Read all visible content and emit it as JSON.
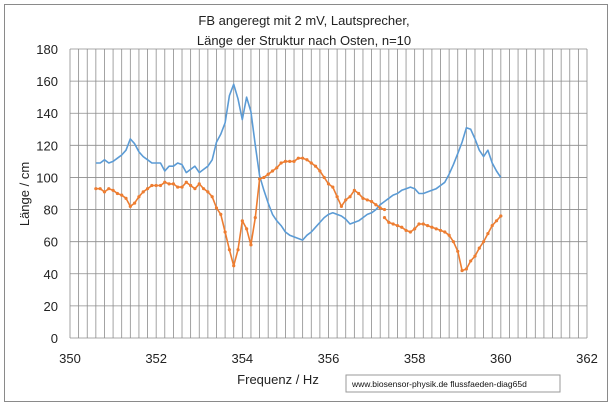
{
  "chart_data": {
    "type": "line",
    "title_line1": "FB angeregt mit 2 mV, Lautsprecher,",
    "title_line2": "Länge der Struktur nach Osten, n=10",
    "xlabel": "Frequenz / Hz",
    "ylabel": "Länge / cm",
    "xlim": [
      350,
      362
    ],
    "ylim": [
      0,
      180
    ],
    "x_ticks": [
      350,
      352,
      354,
      356,
      358,
      360,
      362
    ],
    "y_ticks": [
      0,
      20,
      40,
      60,
      80,
      100,
      120,
      140,
      160,
      180
    ],
    "x_grid_step": 0.2,
    "y_grid_step": 20,
    "grid": true,
    "watermark": "www.biosensor-physik.de  flussfaeden-diag65d",
    "series": [
      {
        "color": "#5B9BD5",
        "marker": false,
        "points": [
          [
            350.6,
            109
          ],
          [
            350.7,
            109
          ],
          [
            350.8,
            111
          ],
          [
            350.9,
            109
          ],
          [
            351.0,
            110
          ],
          [
            351.1,
            112
          ],
          [
            351.2,
            114
          ],
          [
            351.3,
            117
          ],
          [
            351.4,
            124
          ],
          [
            351.5,
            121
          ],
          [
            351.6,
            116
          ],
          [
            351.7,
            113
          ],
          [
            351.8,
            111
          ],
          [
            351.9,
            109
          ],
          [
            352.0,
            109
          ],
          [
            352.1,
            109
          ],
          [
            352.2,
            104
          ],
          [
            352.3,
            107
          ],
          [
            352.4,
            107
          ],
          [
            352.5,
            109
          ],
          [
            352.6,
            108
          ],
          [
            352.7,
            103
          ],
          [
            352.8,
            105
          ],
          [
            352.9,
            107
          ],
          [
            353.0,
            103
          ],
          [
            353.1,
            105
          ],
          [
            353.2,
            107
          ],
          [
            353.3,
            111
          ],
          [
            353.4,
            122
          ],
          [
            353.5,
            127
          ],
          [
            353.6,
            134
          ],
          [
            353.7,
            151
          ],
          [
            353.8,
            158
          ],
          [
            353.9,
            149
          ],
          [
            354.0,
            136
          ],
          [
            354.1,
            150
          ],
          [
            354.2,
            141
          ],
          [
            354.3,
            120
          ],
          [
            354.4,
            101
          ],
          [
            354.5,
            92
          ],
          [
            354.6,
            84
          ],
          [
            354.7,
            77
          ],
          [
            354.8,
            73
          ],
          [
            354.9,
            70
          ],
          [
            355.0,
            66
          ],
          [
            355.1,
            64
          ],
          [
            355.2,
            63
          ],
          [
            355.3,
            62
          ],
          [
            355.4,
            61
          ],
          [
            355.5,
            64
          ],
          [
            355.6,
            66
          ],
          [
            355.7,
            69
          ],
          [
            355.8,
            72
          ],
          [
            355.9,
            75
          ],
          [
            356.0,
            77
          ],
          [
            356.1,
            78
          ],
          [
            356.2,
            77
          ],
          [
            356.3,
            76
          ],
          [
            356.4,
            74
          ],
          [
            356.5,
            71
          ],
          [
            356.6,
            72
          ],
          [
            356.7,
            73
          ],
          [
            356.8,
            75
          ],
          [
            356.9,
            77
          ],
          [
            357.0,
            78
          ],
          [
            357.1,
            80
          ],
          [
            357.2,
            83
          ],
          [
            357.3,
            85
          ],
          [
            357.4,
            87
          ],
          [
            357.5,
            89
          ],
          [
            357.6,
            90
          ],
          [
            357.7,
            92
          ],
          [
            357.8,
            93
          ],
          [
            357.9,
            94
          ],
          [
            358.0,
            93
          ],
          [
            358.1,
            90
          ],
          [
            358.2,
            90
          ],
          [
            358.3,
            91
          ],
          [
            358.4,
            92
          ],
          [
            358.5,
            93
          ],
          [
            358.6,
            95
          ],
          [
            358.7,
            97
          ],
          [
            358.8,
            102
          ],
          [
            358.9,
            108
          ],
          [
            359.0,
            115
          ],
          [
            359.1,
            122
          ],
          [
            359.2,
            131
          ],
          [
            359.3,
            130
          ],
          [
            359.4,
            124
          ],
          [
            359.5,
            117
          ],
          [
            359.6,
            113
          ],
          [
            359.7,
            117
          ],
          [
            359.8,
            109
          ],
          [
            359.9,
            104
          ],
          [
            360.0,
            100
          ]
        ]
      },
      {
        "color": "#ED7D31",
        "marker": true,
        "points": [
          [
            350.6,
            93
          ],
          [
            350.7,
            93
          ],
          [
            350.8,
            91
          ],
          [
            350.9,
            93
          ],
          [
            351.0,
            92
          ],
          [
            351.1,
            90
          ],
          [
            351.2,
            89
          ],
          [
            351.3,
            87
          ],
          [
            351.4,
            82
          ],
          [
            351.5,
            84
          ],
          [
            351.6,
            88
          ],
          [
            351.7,
            91
          ],
          [
            351.8,
            93
          ],
          [
            351.9,
            95
          ],
          [
            352.0,
            95
          ],
          [
            352.1,
            95
          ],
          [
            352.2,
            97
          ],
          [
            352.3,
            96
          ],
          [
            352.4,
            96
          ],
          [
            352.5,
            94
          ],
          [
            352.6,
            94
          ],
          [
            352.7,
            97
          ],
          [
            352.8,
            95
          ],
          [
            352.9,
            93
          ],
          [
            353.0,
            96
          ],
          [
            353.1,
            93
          ],
          [
            353.2,
            91
          ],
          [
            353.3,
            88
          ],
          [
            353.4,
            81
          ],
          [
            353.5,
            77
          ],
          [
            353.6,
            66
          ],
          [
            353.7,
            55
          ],
          [
            353.8,
            45
          ],
          [
            353.9,
            55
          ],
          [
            354.0,
            73
          ],
          [
            354.1,
            68
          ],
          [
            354.2,
            58
          ],
          [
            354.3,
            75
          ],
          [
            354.4,
            99
          ],
          [
            354.5,
            100
          ],
          [
            354.6,
            102
          ],
          [
            354.7,
            104
          ],
          [
            354.8,
            106
          ],
          [
            354.9,
            109
          ],
          [
            355.0,
            110
          ],
          [
            355.1,
            110
          ],
          [
            355.2,
            110
          ],
          [
            355.3,
            112
          ],
          [
            355.4,
            112
          ],
          [
            355.5,
            111
          ],
          [
            355.6,
            109
          ],
          [
            355.7,
            107
          ],
          [
            355.8,
            104
          ],
          [
            355.9,
            100
          ],
          [
            356.0,
            96
          ],
          [
            356.1,
            94
          ],
          [
            356.2,
            88
          ],
          [
            356.3,
            82
          ],
          [
            356.4,
            86
          ],
          [
            356.5,
            88
          ],
          [
            356.6,
            92
          ],
          [
            356.7,
            90
          ],
          [
            356.8,
            87
          ],
          [
            356.9,
            86
          ],
          [
            357.0,
            85
          ],
          [
            357.1,
            83
          ],
          [
            357.2,
            81
          ],
          [
            357.3,
            80
          ]
        ]
      },
      {
        "color": "#ED7D31",
        "marker": true,
        "points": [
          [
            357.3,
            75
          ],
          [
            357.4,
            72
          ],
          [
            357.5,
            71
          ],
          [
            357.6,
            70
          ],
          [
            357.7,
            69
          ],
          [
            357.8,
            67
          ],
          [
            357.9,
            66
          ],
          [
            358.0,
            68
          ],
          [
            358.1,
            71
          ],
          [
            358.2,
            71
          ],
          [
            358.3,
            70
          ],
          [
            358.4,
            69
          ],
          [
            358.5,
            68
          ],
          [
            358.6,
            67
          ],
          [
            358.7,
            66
          ],
          [
            358.8,
            64
          ],
          [
            358.9,
            60
          ],
          [
            359.0,
            54
          ],
          [
            359.1,
            42
          ],
          [
            359.2,
            43
          ],
          [
            359.3,
            48
          ],
          [
            359.4,
            51
          ],
          [
            359.5,
            56
          ],
          [
            359.6,
            60
          ],
          [
            359.7,
            65
          ],
          [
            359.8,
            70
          ],
          [
            359.9,
            73
          ],
          [
            360.0,
            76
          ]
        ]
      }
    ]
  }
}
